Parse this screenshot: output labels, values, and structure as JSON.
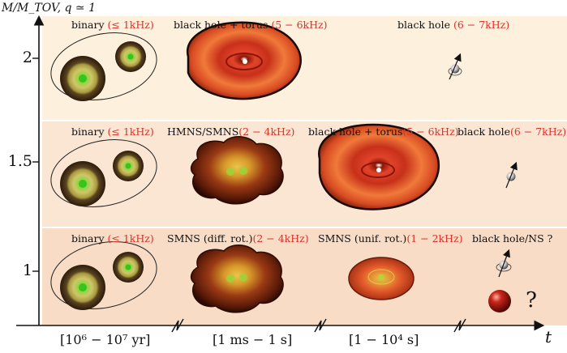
{
  "y_axis_title": "M/M_TOV, q ≃ 1",
  "x_axis_title": "t",
  "y_ticks": [
    "2",
    "1.5",
    "1"
  ],
  "x_ticks": [
    "[10⁶ − 10⁷ yr]",
    "[1 ms − 1 s]",
    "[1 − 10⁴ s]"
  ],
  "rows": {
    "top": {
      "binary": {
        "name": "binary ",
        "freq": "(≤ 1kHz)"
      },
      "bh_torus": {
        "name": "black hole + torus ",
        "freq": "(5 − 6kHz)"
      },
      "bh": {
        "name": "black hole ",
        "freq": "(6 − 7kHz)"
      }
    },
    "middle": {
      "binary": {
        "name": "binary ",
        "freq": "(≤ 1kHz)"
      },
      "hmns": {
        "name": "HMNS/SMNS",
        "freq": "(2 − 4kHz)"
      },
      "bh_torus": {
        "name": "black hole + torus",
        "freq": "(5 − 6kHz)"
      },
      "bh": {
        "name": "black hole",
        "freq": "(6 − 7kHz)"
      }
    },
    "bottom": {
      "binary": {
        "name": "binary ",
        "freq": "(≤ 1kHz)"
      },
      "smns_diff": {
        "name": "SMNS (diff. rot.)",
        "freq": "(2 − 4kHz)"
      },
      "smns_unif": {
        "name": "SMNS (unif. rot.)",
        "freq": "(1 − 2kHz)"
      },
      "bh_ns": {
        "name": "black hole/NS ?",
        "freq": ""
      }
    }
  },
  "question_mark": "?",
  "colors": {
    "band_top": "#fdf1de",
    "band_middle": "#fbe6d4",
    "band_bottom": "#f8dcc6",
    "frequency_text": "#d9332a"
  }
}
